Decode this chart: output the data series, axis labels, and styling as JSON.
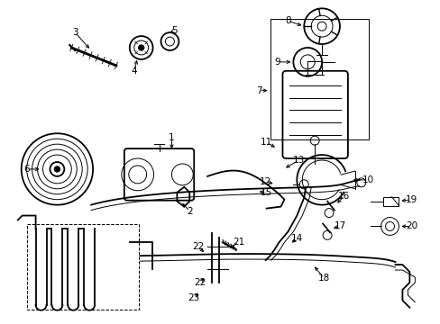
{
  "bg_color": "#ffffff",
  "line_color": "#000000",
  "lw_main": 1.3,
  "lw_thin": 0.7,
  "label_fontsize": 7.5
}
